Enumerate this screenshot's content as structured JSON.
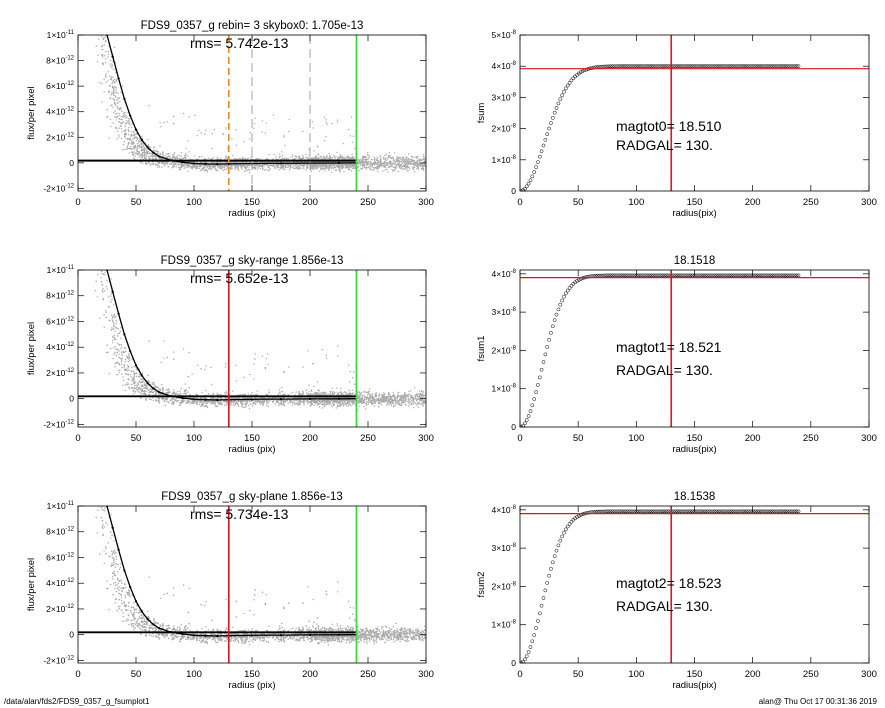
{
  "footer": {
    "path": "/data/alan/fds2/FDS9_0357_g_fsumplot1",
    "stamp": "alan@  Thu Oct 17 00:31:36 2019"
  },
  "colors": {
    "scatter": "#a8a8a8",
    "profile": "#000000",
    "red": "#e0141e",
    "green": "#33dd33",
    "orange": "#f08a1e",
    "gray_dash": "#9a9a9a"
  },
  "chart_data": [
    {
      "id": "flux1",
      "type": "scatter",
      "title": "FDS9_0357_g rebin= 3    skybox0:  1.705e-13",
      "annotations": [
        "rms= 5.742e-13"
      ],
      "xlabel": "radius (pix)",
      "ylabel": "flux/per pixel",
      "xlim": [
        0,
        300
      ],
      "ylim": [
        -2.2e-12,
        1e-11
      ],
      "xticks": [
        "0",
        "50",
        "100",
        "150",
        "200",
        "250",
        "300"
      ],
      "yticks": [
        {
          "value": -2e-12,
          "mant": "-2×10",
          "exp": "-12"
        },
        {
          "value": 0,
          "mant": "0",
          "exp": ""
        },
        {
          "value": 2e-12,
          "mant": "2×10",
          "exp": "-12"
        },
        {
          "value": 4e-12,
          "mant": "4×10",
          "exp": "-12"
        },
        {
          "value": 6e-12,
          "mant": "6×10",
          "exp": "-12"
        },
        {
          "value": 8e-12,
          "mant": "8×10",
          "exp": "-12"
        },
        {
          "value": 1e-11,
          "mant": "1×10",
          "exp": "-11"
        }
      ],
      "profile": {
        "x": [
          25,
          30,
          35,
          40,
          45,
          50,
          55,
          60,
          65,
          70,
          80,
          90,
          100,
          110,
          120,
          130,
          150,
          175,
          200,
          225,
          240
        ],
        "y": [
          1e-11,
          8.3e-12,
          6.6e-12,
          5e-12,
          3.7e-12,
          2.6e-12,
          1.8e-12,
          1.2e-12,
          8e-13,
          5e-13,
          2e-13,
          5e-14,
          -5e-14,
          -8e-14,
          -1e-13,
          -8e-14,
          -5e-14,
          -3e-14,
          -2e-14,
          -1e-14,
          0
        ]
      },
      "sky_lines": [
        2.2e-13,
        1.705e-13,
        1.3e-13
      ],
      "vlines": [
        {
          "x": 130,
          "color": "orange",
          "style": "dashed"
        },
        {
          "x": 150,
          "color": "gray_dash",
          "style": "dashed"
        },
        {
          "x": 200,
          "color": "gray_dash",
          "style": "dashed"
        },
        {
          "x": 240,
          "color": "green",
          "style": "solid"
        }
      ]
    },
    {
      "id": "fsum0",
      "type": "scatter",
      "title": "",
      "annotations": [
        "magtot0=  18.510",
        "RADGAL=    130."
      ],
      "xlabel": "radius(pix)",
      "ylabel": "fsum",
      "xlim": [
        0,
        300
      ],
      "ylim": [
        0,
        5e-08
      ],
      "xticks": [
        "0",
        "50",
        "100",
        "150",
        "200",
        "250",
        "300"
      ],
      "yticks": [
        {
          "value": 0,
          "mant": "0",
          "exp": ""
        },
        {
          "value": 1e-08,
          "mant": "1×10",
          "exp": "-8"
        },
        {
          "value": 2e-08,
          "mant": "2×10",
          "exp": "-8"
        },
        {
          "value": 3e-08,
          "mant": "3×10",
          "exp": "-8"
        },
        {
          "value": 4e-08,
          "mant": "4×10",
          "exp": "-8"
        },
        {
          "value": 5e-08,
          "mant": "5×10",
          "exp": "-8"
        }
      ],
      "curve": {
        "plateau": 4e-08,
        "scale": 30,
        "end": 240
      },
      "hline": {
        "y": 3.92e-08,
        "color": "red"
      },
      "vlines": [
        {
          "x": 130,
          "color": "red",
          "style": "solid"
        }
      ]
    },
    {
      "id": "flux2",
      "type": "scatter",
      "title": "FDS9_0357_g sky-range  1.856e-13",
      "annotations": [
        "rms= 5.652e-13"
      ],
      "xlabel": "radius (pix)",
      "ylabel": "flux/per pixel",
      "xlim": [
        0,
        300
      ],
      "ylim": [
        -2.2e-12,
        1e-11
      ],
      "xticks": [
        "0",
        "50",
        "100",
        "150",
        "200",
        "250",
        "300"
      ],
      "yticks": [
        {
          "value": -2e-12,
          "mant": "-2×10",
          "exp": "-12"
        },
        {
          "value": 0,
          "mant": "0",
          "exp": ""
        },
        {
          "value": 2e-12,
          "mant": "2×10",
          "exp": "-12"
        },
        {
          "value": 4e-12,
          "mant": "4×10",
          "exp": "-12"
        },
        {
          "value": 6e-12,
          "mant": "6×10",
          "exp": "-12"
        },
        {
          "value": 8e-12,
          "mant": "8×10",
          "exp": "-12"
        },
        {
          "value": 1e-11,
          "mant": "1×10",
          "exp": "-11"
        }
      ],
      "profile": {
        "x": [
          25,
          30,
          35,
          40,
          45,
          50,
          55,
          60,
          65,
          70,
          80,
          90,
          100,
          110,
          120,
          130,
          150,
          175,
          200,
          225,
          240
        ],
        "y": [
          1e-11,
          8.3e-12,
          6.6e-12,
          5e-12,
          3.7e-12,
          2.6e-12,
          1.8e-12,
          1.2e-12,
          8e-13,
          5e-13,
          2e-13,
          5e-14,
          -5e-14,
          -8e-14,
          -1e-13,
          -8e-14,
          -5e-14,
          -3e-14,
          -2e-14,
          -1e-14,
          0
        ]
      },
      "sky_lines": [
        2.3e-13,
        1.856e-13,
        1.4e-13
      ],
      "vlines": [
        {
          "x": 130,
          "color": "red",
          "style": "solid"
        },
        {
          "x": 240,
          "color": "green",
          "style": "solid"
        }
      ]
    },
    {
      "id": "fsum1",
      "type": "scatter",
      "title": "18.1518",
      "annotations": [
        "magtot1=  18.521",
        "RADGAL=    130."
      ],
      "xlabel": "radius(pix)",
      "ylabel": "fsum1",
      "xlim": [
        0,
        300
      ],
      "ylim": [
        0,
        4.1e-08
      ],
      "xticks": [
        "0",
        "50",
        "100",
        "150",
        "200",
        "250",
        "300"
      ],
      "yticks": [
        {
          "value": 0,
          "mant": "0",
          "exp": ""
        },
        {
          "value": 1e-08,
          "mant": "1×10",
          "exp": "-8"
        },
        {
          "value": 2e-08,
          "mant": "2×10",
          "exp": "-8"
        },
        {
          "value": 3e-08,
          "mant": "3×10",
          "exp": "-8"
        },
        {
          "value": 4e-08,
          "mant": "4×10",
          "exp": "-8"
        }
      ],
      "curve": {
        "plateau": 3.96e-08,
        "scale": 27,
        "end": 240
      },
      "hline": {
        "y": 3.9e-08,
        "color": "red"
      },
      "vlines": [
        {
          "x": 130,
          "color": "red",
          "style": "solid"
        }
      ]
    },
    {
      "id": "flux3",
      "type": "scatter",
      "title": "FDS9_0357_g sky-plane  1.856e-13",
      "annotations": [
        "rms= 5.734e-13"
      ],
      "xlabel": "radius (pix)",
      "ylabel": "flux/per pixel",
      "xlim": [
        0,
        300
      ],
      "ylim": [
        -2.2e-12,
        1e-11
      ],
      "xticks": [
        "0",
        "50",
        "100",
        "150",
        "200",
        "250",
        "300"
      ],
      "yticks": [
        {
          "value": -2e-12,
          "mant": "-2×10",
          "exp": "-12"
        },
        {
          "value": 0,
          "mant": "0",
          "exp": ""
        },
        {
          "value": 2e-12,
          "mant": "2×10",
          "exp": "-12"
        },
        {
          "value": 4e-12,
          "mant": "4×10",
          "exp": "-12"
        },
        {
          "value": 6e-12,
          "mant": "6×10",
          "exp": "-12"
        },
        {
          "value": 8e-12,
          "mant": "8×10",
          "exp": "-12"
        },
        {
          "value": 1e-11,
          "mant": "1×10",
          "exp": "-11"
        }
      ],
      "profile": {
        "x": [
          25,
          30,
          35,
          40,
          45,
          50,
          55,
          60,
          65,
          70,
          80,
          90,
          100,
          110,
          120,
          130,
          150,
          175,
          200,
          225,
          240
        ],
        "y": [
          1e-11,
          8.3e-12,
          6.6e-12,
          5e-12,
          3.7e-12,
          2.6e-12,
          1.8e-12,
          1.2e-12,
          8e-13,
          5e-13,
          2e-13,
          5e-14,
          -5e-14,
          -8e-14,
          -1e-13,
          -8e-14,
          -5e-14,
          -3e-14,
          -2e-14,
          -1e-14,
          0
        ]
      },
      "sky_lines": [
        2.3e-13,
        1.856e-13,
        1.4e-13
      ],
      "vlines": [
        {
          "x": 130,
          "color": "red",
          "style": "solid"
        },
        {
          "x": 240,
          "color": "green",
          "style": "solid"
        }
      ]
    },
    {
      "id": "fsum2",
      "type": "scatter",
      "title": "18.1538",
      "annotations": [
        "magtot2=  18.523",
        "RADGAL=    130."
      ],
      "xlabel": "radius(pix)",
      "ylabel": "fsum2",
      "xlim": [
        0,
        300
      ],
      "ylim": [
        0,
        4.1e-08
      ],
      "xticks": [
        "0",
        "50",
        "100",
        "150",
        "200",
        "250",
        "300"
      ],
      "yticks": [
        {
          "value": 0,
          "mant": "0",
          "exp": ""
        },
        {
          "value": 1e-08,
          "mant": "1×10",
          "exp": "-8"
        },
        {
          "value": 2e-08,
          "mant": "2×10",
          "exp": "-8"
        },
        {
          "value": 3e-08,
          "mant": "3×10",
          "exp": "-8"
        },
        {
          "value": 4e-08,
          "mant": "4×10",
          "exp": "-8"
        }
      ],
      "curve": {
        "plateau": 3.96e-08,
        "scale": 27,
        "end": 240
      },
      "hline": {
        "y": 3.9e-08,
        "color": "red"
      },
      "vlines": [
        {
          "x": 130,
          "color": "red",
          "style": "solid"
        }
      ]
    }
  ]
}
